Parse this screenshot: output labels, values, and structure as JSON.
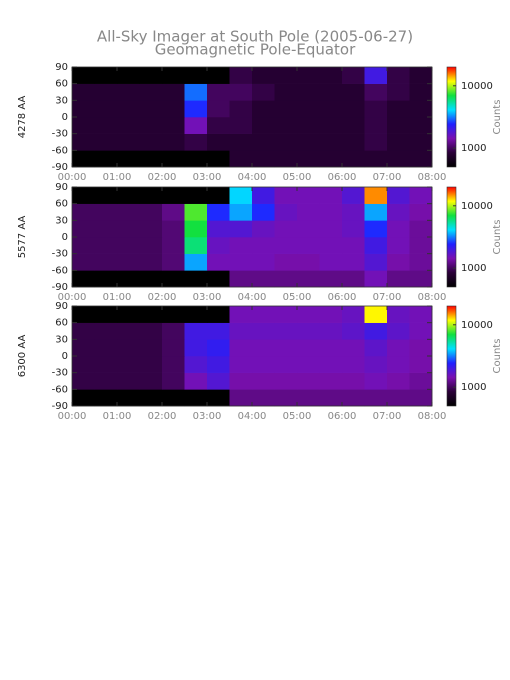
{
  "title": "All-Sky Imager at South Pole (2005-06-27)",
  "subtitle": "Geomagnetic Pole-Equator",
  "chart_data": [
    {
      "type": "heatmap",
      "ylabel": "4278 AA",
      "colorbar_label": "Counts",
      "xbins": [
        0,
        0.5,
        1,
        1.5,
        2,
        2.5,
        3,
        3.5,
        4,
        4.5,
        5,
        5.5,
        6,
        6.5,
        7,
        7.5,
        8
      ],
      "ybins": [
        -90,
        -60,
        -30,
        0,
        30,
        60,
        90
      ],
      "z": [
        [
          500,
          500,
          500,
          500,
          500,
          500,
          500,
          800,
          800,
          800,
          800,
          800,
          800,
          800,
          800,
          800
        ],
        [
          800,
          800,
          800,
          800,
          800,
          900,
          800,
          800,
          800,
          800,
          800,
          800,
          800,
          900,
          800,
          800
        ],
        [
          800,
          800,
          800,
          800,
          800,
          1500,
          900,
          900,
          800,
          800,
          800,
          800,
          800,
          900,
          800,
          800
        ],
        [
          800,
          800,
          800,
          800,
          800,
          2500,
          1000,
          900,
          800,
          800,
          800,
          800,
          800,
          900,
          800,
          800
        ],
        [
          800,
          800,
          800,
          800,
          800,
          3000,
          1000,
          1000,
          900,
          800,
          800,
          800,
          800,
          1000,
          900,
          800
        ],
        [
          500,
          500,
          500,
          500,
          500,
          500,
          500,
          900,
          800,
          800,
          800,
          800,
          900,
          2000,
          900,
          800
        ]
      ],
      "xlim": [
        0,
        8
      ],
      "xticks": [
        {
          "value": 0,
          "label": "00:00"
        },
        {
          "value": 1,
          "label": "01:00"
        },
        {
          "value": 2,
          "label": "02:00"
        },
        {
          "value": 3,
          "label": "03:00"
        },
        {
          "value": 4,
          "label": "04:00"
        },
        {
          "value": 5,
          "label": "05:00"
        },
        {
          "value": 6,
          "label": "06:00"
        },
        {
          "value": 7,
          "label": "07:00"
        },
        {
          "value": 8,
          "label": "08:00"
        }
      ],
      "ylim": [
        -90,
        90
      ],
      "yticks": [
        -90,
        -60,
        -30,
        0,
        30,
        60,
        90
      ],
      "clim": [
        500,
        20000
      ],
      "cticks": [
        1000,
        10000
      ],
      "log_color": true,
      "colormap": [
        "#000000",
        "#2a0038",
        "#7a10b0",
        "#2020ff",
        "#00e0ff",
        "#10e040",
        "#ffff00",
        "#ff0000"
      ]
    },
    {
      "type": "heatmap",
      "ylabel": "5577 AA",
      "colorbar_label": "Counts",
      "xbins": [
        0,
        0.5,
        1,
        1.5,
        2,
        2.5,
        3,
        3.5,
        4,
        4.5,
        5,
        5.5,
        6,
        6.5,
        7,
        7.5,
        8
      ],
      "ybins": [
        -90,
        -60,
        -30,
        0,
        30,
        60,
        90
      ],
      "z": [
        [
          500,
          500,
          500,
          500,
          500,
          500,
          500,
          1200,
          1200,
          1200,
          1200,
          1200,
          1200,
          1500,
          1200,
          1200
        ],
        [
          1000,
          1000,
          1000,
          1000,
          1100,
          3500,
          1500,
          1500,
          1500,
          1400,
          1400,
          1500,
          1500,
          1800,
          1400,
          1300
        ],
        [
          1000,
          1000,
          1000,
          1000,
          1100,
          6000,
          1600,
          1500,
          1500,
          1500,
          1500,
          1500,
          1500,
          2000,
          1500,
          1300
        ],
        [
          1000,
          1000,
          1000,
          1000,
          1100,
          7000,
          1800,
          1800,
          1600,
          1500,
          1500,
          1500,
          1600,
          2500,
          1500,
          1300
        ],
        [
          1000,
          1000,
          1000,
          1000,
          1200,
          8000,
          2500,
          3500,
          2500,
          1600,
          1500,
          1500,
          1600,
          3500,
          1600,
          1400
        ],
        [
          500,
          500,
          500,
          500,
          500,
          500,
          500,
          4000,
          2000,
          1500,
          1500,
          1500,
          1800,
          15000,
          1800,
          1500
        ]
      ],
      "xlim": [
        0,
        8
      ],
      "xticks": [
        {
          "value": 0,
          "label": "00:00"
        },
        {
          "value": 1,
          "label": "01:00"
        },
        {
          "value": 2,
          "label": "02:00"
        },
        {
          "value": 3,
          "label": "03:00"
        },
        {
          "value": 4,
          "label": "04:00"
        },
        {
          "value": 5,
          "label": "05:00"
        },
        {
          "value": 6,
          "label": "06:00"
        },
        {
          "value": 7,
          "label": "07:00"
        },
        {
          "value": 8,
          "label": "08:00"
        }
      ],
      "ylim": [
        -90,
        90
      ],
      "yticks": [
        -90,
        -60,
        -30,
        0,
        30,
        60,
        90
      ],
      "clim": [
        500,
        20000
      ],
      "cticks": [
        1000,
        10000
      ],
      "log_color": true,
      "colormap": [
        "#000000",
        "#2a0038",
        "#7a10b0",
        "#2020ff",
        "#00e0ff",
        "#10e040",
        "#ffff00",
        "#ff0000"
      ]
    },
    {
      "type": "heatmap",
      "ylabel": "6300 AA",
      "colorbar_label": "Counts",
      "xbins": [
        0,
        0.5,
        1,
        1.5,
        2,
        2.5,
        3,
        3.5,
        4,
        4.5,
        5,
        5.5,
        6,
        6.5,
        7,
        7.5,
        8
      ],
      "ybins": [
        -90,
        -60,
        -30,
        0,
        30,
        60,
        90
      ],
      "z": [
        [
          500,
          500,
          500,
          500,
          500,
          500,
          500,
          1200,
          1200,
          1200,
          1200,
          1200,
          1200,
          1200,
          1200,
          1200
        ],
        [
          900,
          900,
          900,
          900,
          1000,
          1500,
          1800,
          1400,
          1400,
          1400,
          1400,
          1400,
          1400,
          1500,
          1400,
          1300
        ],
        [
          900,
          900,
          900,
          900,
          1000,
          1800,
          2000,
          1500,
          1500,
          1500,
          1500,
          1500,
          1500,
          1600,
          1500,
          1400
        ],
        [
          900,
          900,
          900,
          900,
          1000,
          2000,
          2200,
          1500,
          1500,
          1500,
          1500,
          1500,
          1500,
          1700,
          1500,
          1400
        ],
        [
          900,
          900,
          900,
          900,
          1000,
          2000,
          2000,
          1600,
          1600,
          1600,
          1600,
          1600,
          1700,
          2000,
          1700,
          1500
        ],
        [
          500,
          500,
          500,
          500,
          500,
          500,
          500,
          1500,
          1500,
          1500,
          1500,
          1500,
          1600,
          12000,
          1600,
          1500
        ]
      ],
      "xlim": [
        0,
        8
      ],
      "xticks": [
        {
          "value": 0,
          "label": "00:00"
        },
        {
          "value": 1,
          "label": "01:00"
        },
        {
          "value": 2,
          "label": "02:00"
        },
        {
          "value": 3,
          "label": "03:00"
        },
        {
          "value": 4,
          "label": "04:00"
        },
        {
          "value": 5,
          "label": "05:00"
        },
        {
          "value": 6,
          "label": "06:00"
        },
        {
          "value": 7,
          "label": "07:00"
        },
        {
          "value": 8,
          "label": "08:00"
        }
      ],
      "ylim": [
        -90,
        90
      ],
      "yticks": [
        -90,
        -60,
        -30,
        0,
        30,
        60,
        90
      ],
      "clim": [
        500,
        20000
      ],
      "cticks": [
        1000,
        10000
      ],
      "log_color": true,
      "colormap": [
        "#000000",
        "#2a0038",
        "#7a10b0",
        "#2020ff",
        "#00e0ff",
        "#10e040",
        "#ffff00",
        "#ff0000"
      ]
    }
  ]
}
